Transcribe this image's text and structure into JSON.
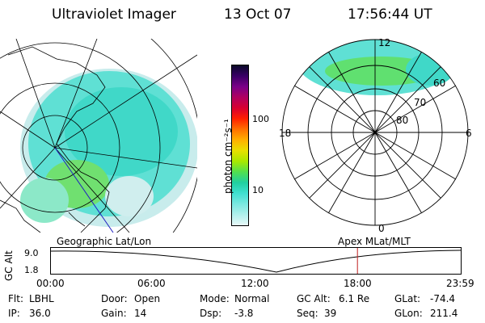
{
  "header": {
    "instrument": "Ultraviolet Imager",
    "date": "13 Oct 07",
    "time": "17:56:44 UT"
  },
  "geo_panel": {
    "label": "Geographic Lat/Lon"
  },
  "polar_panel": {
    "label": "Apex MLat/MLT",
    "mlt_labels": {
      "top": "12",
      "bottom": "0",
      "left": "18",
      "right": "6"
    },
    "lat_labels": [
      "60",
      "70",
      "80"
    ]
  },
  "colorbar": {
    "unit_label": "photon cm⁻²s⁻¹",
    "ticks": [
      "100",
      "10"
    ],
    "colors": [
      "#0a0a2a",
      "#3a0066",
      "#7a0088",
      "#b00060",
      "#d80030",
      "#ff2000",
      "#ff7000",
      "#ffb000",
      "#e8e000",
      "#a8e800",
      "#50e050",
      "#20d0a0",
      "#40e0d0",
      "#7ae8e0",
      "#b0f0ec",
      "#e8f8f8"
    ]
  },
  "timeline": {
    "axis_label": "GC Alt",
    "y_ticks": [
      "9.0",
      "1.8"
    ],
    "x_ticks": [
      "00:00",
      "06:00",
      "12:00",
      "18:00",
      "23:59"
    ],
    "marker_hour": 17.95
  },
  "status": {
    "flt_label": "Flt:",
    "flt_value": "LBHL",
    "ip_label": "IP:",
    "ip_value": "36.0",
    "door_label": "Door:",
    "door_value": "Open",
    "gain_label": "Gain:",
    "gain_value": "14",
    "mode_label": "Mode:",
    "mode_value": "Normal",
    "dsp_label": "Dsp:",
    "dsp_value": "-3.8",
    "gcalt_label": "GC Alt:",
    "gcalt_value": "6.1 Re",
    "seq_label": "Seq:",
    "seq_value": "39",
    "glat_label": "GLat:",
    "glat_value": "-74.4",
    "glon_label": "GLon:",
    "glon_value": "211.4"
  }
}
